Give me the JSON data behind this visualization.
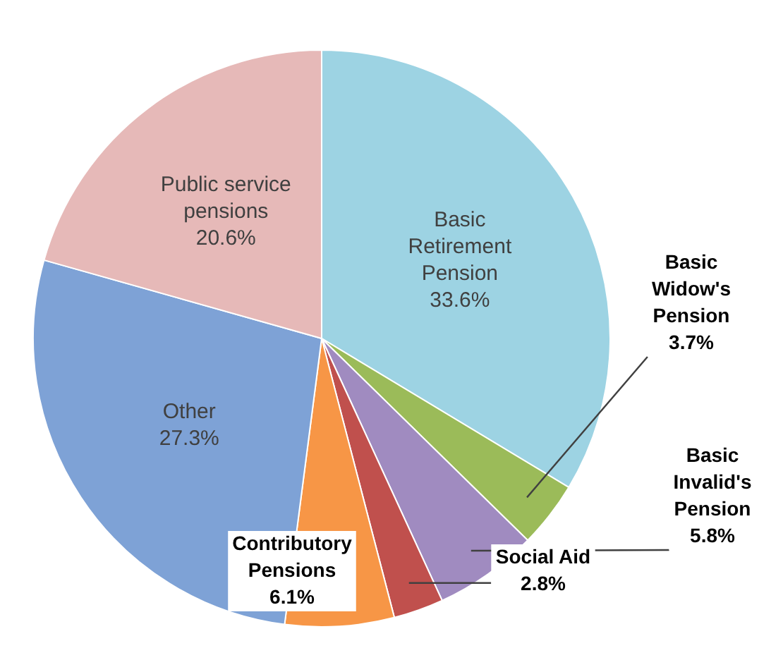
{
  "chart_data": {
    "type": "pie",
    "categories": [
      "Basic Retirement Pension",
      "Basic Widow's Pension",
      "Basic Invalid's Pension",
      "Social Aid",
      "Contributory Pensions",
      "Other",
      "Public service pensions"
    ],
    "values": [
      33.6,
      3.7,
      5.8,
      2.8,
      6.1,
      27.3,
      20.6
    ],
    "value_labels": [
      "33.6%",
      "3.7%",
      "5.8%",
      "2.8%",
      "6.1%",
      "27.3%",
      "20.6%"
    ],
    "colors": [
      "#9dd3e3",
      "#9bbb59",
      "#a08bc0",
      "#c0504d",
      "#f79646",
      "#7ea2d6",
      "#e6b9b8"
    ],
    "legend": false
  }
}
